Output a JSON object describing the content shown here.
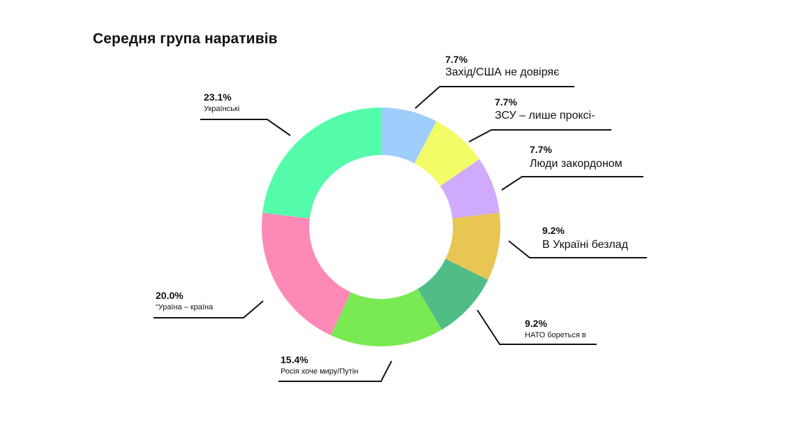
{
  "chart_data": {
    "type": "pie",
    "title": "Середня група наративів",
    "slices": [
      {
        "label": "Захід/США не довіряє",
        "value": 7.7,
        "value_label": "7.7%",
        "color": "#9fcdfc"
      },
      {
        "label": "ЗСУ – лише проксі-",
        "value": 7.7,
        "value_label": "7.7%",
        "color": "#f1fc66"
      },
      {
        "label": "Люди закордоном",
        "value": 7.7,
        "value_label": "7.7%",
        "color": "#cfaafd"
      },
      {
        "label": "В Україні безлад",
        "value": 9.2,
        "value_label": "9.2%",
        "color": "#e8c653"
      },
      {
        "label": "НАТО бореться в",
        "value": 9.2,
        "value_label": "9.2%",
        "color": "#50bd86"
      },
      {
        "label": "Росія хоче миру/Путін",
        "value": 15.4,
        "value_label": "15.4%",
        "color": "#79ea52"
      },
      {
        "label": "“Ураїна – країна",
        "value": 20.0,
        "value_label": "20.0%",
        "color": "#fd8ab6"
      },
      {
        "label": "Українські",
        "value": 23.1,
        "value_label": "23.1%",
        "color": "#54fcaa"
      }
    ]
  }
}
